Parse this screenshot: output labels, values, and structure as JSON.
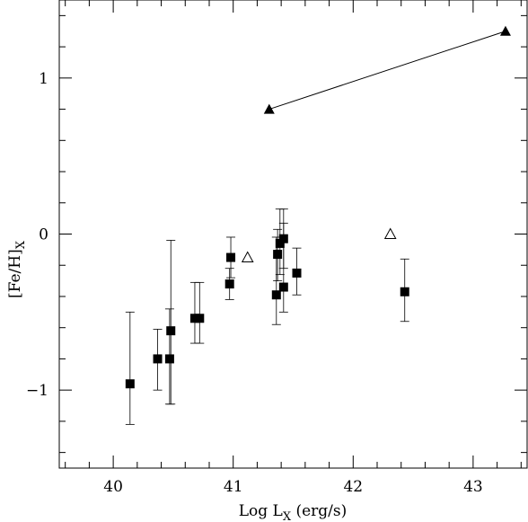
{
  "chart_data": {
    "type": "scatter",
    "xlabel": "Log L",
    "xlabel_sub": "X",
    "xlabel_unit": " (erg/s)",
    "ylabel": "[Fe/H]",
    "ylabel_sub": "X",
    "xlim": [
      39.55,
      43.45
    ],
    "ylim": [
      -1.5,
      1.5
    ],
    "x_ticks": [
      40,
      41,
      42,
      43
    ],
    "y_ticks": [
      -1,
      0,
      1
    ],
    "series": [
      {
        "marker": "filled-square",
        "points": [
          {
            "x": 40.14,
            "y": -0.96,
            "lo": -1.22,
            "hi": -0.5
          },
          {
            "x": 40.37,
            "y": -0.8,
            "lo": -1.0,
            "hi": -0.61
          },
          {
            "x": 40.47,
            "y": -0.8,
            "lo": -1.09,
            "hi": -0.48
          },
          {
            "x": 40.48,
            "y": -0.62,
            "lo": -1.09,
            "hi": -0.04
          },
          {
            "x": 40.68,
            "y": -0.54,
            "lo": -0.7,
            "hi": -0.31
          },
          {
            "x": 40.72,
            "y": -0.54,
            "lo": -0.7,
            "hi": -0.31
          },
          {
            "x": 40.97,
            "y": -0.32,
            "lo": -0.42,
            "hi": -0.22
          },
          {
            "x": 40.98,
            "y": -0.15,
            "lo": -0.28,
            "hi": -0.02
          },
          {
            "x": 41.36,
            "y": -0.39,
            "lo": -0.58,
            "hi": -0.02
          },
          {
            "x": 41.37,
            "y": -0.13,
            "lo": -0.3,
            "hi": 0.03
          },
          {
            "x": 41.39,
            "y": -0.06,
            "lo": -0.26,
            "hi": 0.16
          },
          {
            "x": 41.42,
            "y": -0.34,
            "lo": -0.5,
            "hi": 0.07
          },
          {
            "x": 41.42,
            "y": -0.03,
            "lo": -0.22,
            "hi": 0.16
          },
          {
            "x": 41.53,
            "y": -0.25,
            "lo": -0.39,
            "hi": -0.09
          },
          {
            "x": 42.43,
            "y": -0.37,
            "lo": -0.56,
            "hi": -0.16
          }
        ]
      },
      {
        "marker": "open-triangle",
        "points": [
          {
            "x": 41.12,
            "y": -0.15
          },
          {
            "x": 42.31,
            "y": 0.0
          }
        ]
      },
      {
        "marker": "filled-triangle",
        "connected": true,
        "points": [
          {
            "x": 41.3,
            "y": 0.8
          },
          {
            "x": 43.27,
            "y": 1.3
          }
        ]
      }
    ],
    "grid": false,
    "legend": "none"
  }
}
